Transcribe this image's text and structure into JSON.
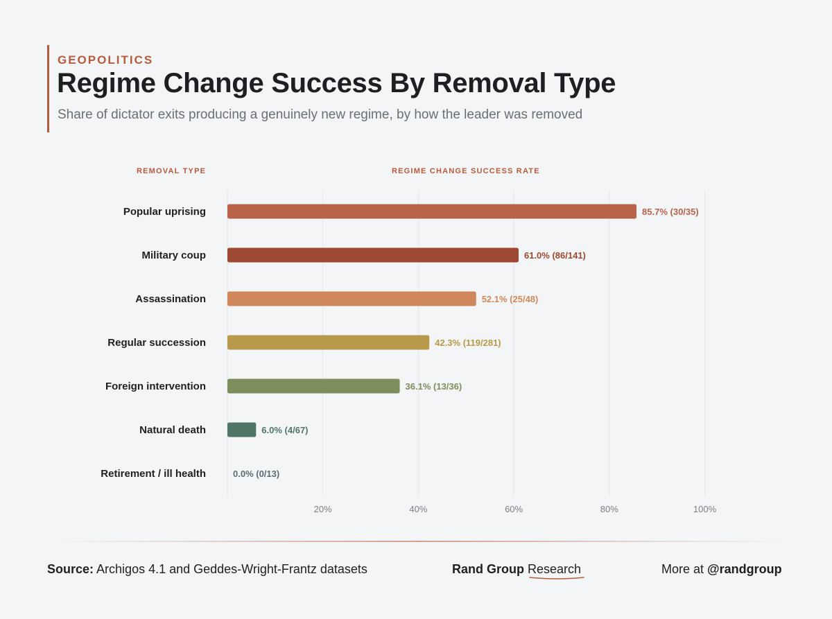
{
  "header": {
    "kicker": "GEOPOLITICS",
    "title": "Regime Change Success By Removal Type",
    "subtitle": "Share of dictator exits producing a genuinely new regime, by how the leader was removed"
  },
  "columns": {
    "left": "REMOVAL TYPE",
    "right": "REGIME CHANGE SUCCESS RATE"
  },
  "chart_data": {
    "type": "bar",
    "orientation": "horizontal",
    "title": "Regime Change Success By Removal Type",
    "categories": [
      "Popular uprising",
      "Military coup",
      "Assassination",
      "Regular succession",
      "Foreign intervention",
      "Natural death",
      "Retirement / ill health"
    ],
    "values": [
      85.7,
      61.0,
      52.1,
      42.3,
      36.1,
      6.0,
      0.0
    ],
    "data_labels": [
      "85.7% (30/35)",
      "61.0% (86/141)",
      "52.1% (25/48)",
      "42.3% (119/281)",
      "36.1% (13/36)",
      "6.0% (4/67)",
      "0.0% (0/13)"
    ],
    "colors": [
      "#b9634a",
      "#9e4a32",
      "#cf875b",
      "#b79a4c",
      "#7d8d5c",
      "#4f7565",
      "#5b6b72"
    ],
    "xlim": [
      0,
      100
    ],
    "xticks": [
      20,
      40,
      60,
      80,
      100
    ],
    "xtick_labels": [
      "20%",
      "40%",
      "60%",
      "80%",
      "100%"
    ],
    "xlabel": "",
    "ylabel": "",
    "grid": true
  },
  "footer": {
    "source_label": "Source:",
    "source_text": "Archigos 4.1 and Geddes-Wright-Frantz datasets",
    "brand_bold": "Rand Group",
    "brand_light": "Research",
    "more_text": "More at",
    "handle": "@randgroup"
  },
  "colors": {
    "accent": "#b85a3c",
    "background": "#f3f5f6",
    "text": "#1d1f22",
    "muted": "#6a6f75"
  }
}
